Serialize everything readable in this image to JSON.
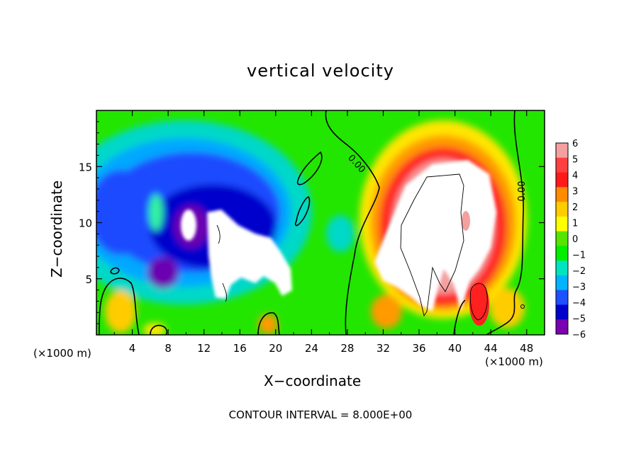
{
  "chart_data": {
    "type": "heatmap",
    "title": "vertical velocity",
    "xlabel": "X−coordinate",
    "ylabel": "Z−coordinate",
    "x_unit_left": "(×1000 m)",
    "x_unit_right": "(×1000 m)",
    "xlim": [
      0,
      50
    ],
    "ylim": [
      0,
      20
    ],
    "x_ticks": [
      4,
      8,
      12,
      16,
      20,
      24,
      28,
      32,
      36,
      40,
      44,
      48
    ],
    "x_tick_labels": [
      "4",
      "8",
      "12",
      "16",
      "20",
      "24",
      "28",
      "32",
      "36",
      "40",
      "44",
      "48"
    ],
    "y_ticks": [
      5,
      10,
      15
    ],
    "y_tick_labels": [
      "5",
      "10",
      "15"
    ],
    "colorbar": {
      "levels": [
        6,
        5,
        4,
        3,
        2,
        1,
        0,
        -1,
        -2,
        -3,
        -4,
        -5,
        -6
      ],
      "labels": [
        "6",
        "5",
        "4",
        "3",
        "2",
        "1",
        "0",
        "−1",
        "−2",
        "−3",
        "−4",
        "−5",
        "−6"
      ],
      "colors": [
        "#f4a0a0",
        "#ff4040",
        "#ff1a1a",
        "#ff8c00",
        "#ffcc00",
        "#ffff00",
        "#55e500",
        "#00ee00",
        "#00e5c0",
        "#00b4ff",
        "#1e50ff",
        "#0000cc",
        "#7a00b0"
      ]
    },
    "contour_labels": [
      "0.00",
      "0.00"
    ],
    "contour_interval_text": "CONTOUR INTERVAL = 8.000E+00",
    "background_color": "#00ee00",
    "saturated_color": "#ffffff"
  }
}
